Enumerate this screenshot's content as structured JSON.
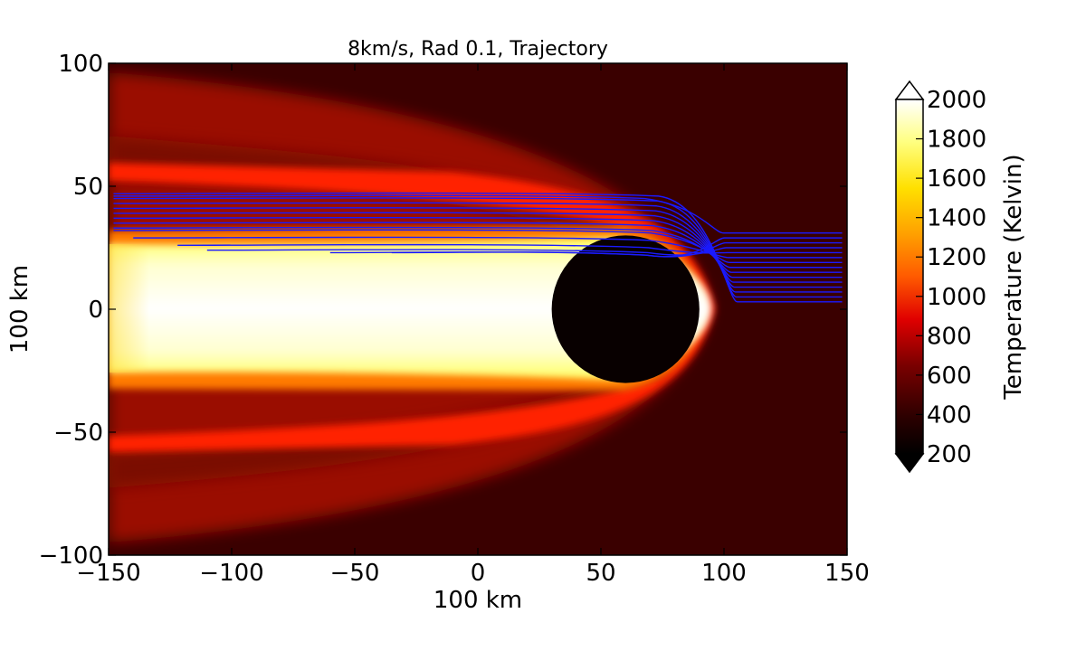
{
  "chart_data": {
    "type": "heatmap",
    "title": "8km/s, Rad 0.1, Trajectory",
    "xlabel": "100 km",
    "ylabel": "100 km",
    "xlim": [
      -150,
      150
    ],
    "ylim": [
      -100,
      100
    ],
    "x_ticks": [
      -150,
      -100,
      -50,
      0,
      50,
      100,
      150
    ],
    "y_ticks": [
      -100,
      -50,
      0,
      50,
      100
    ],
    "x_tick_labels": [
      "−150",
      "−100",
      "−50",
      "0",
      "50",
      "100",
      "150"
    ],
    "y_tick_labels": [
      "−100",
      "−50",
      "0",
      "50",
      "100"
    ],
    "colorbar": {
      "label": "Temperature (Kelvin)",
      "min": 200,
      "max": 2000,
      "ticks": [
        200,
        400,
        600,
        800,
        1000,
        1200,
        1400,
        1600,
        1800,
        2000
      ],
      "tick_labels": [
        "200",
        "400",
        "600",
        "800",
        "1000",
        "1200",
        "1400",
        "1600",
        "1800",
        "2000"
      ],
      "colormap": "hot",
      "extend": "both"
    },
    "obstacle": {
      "center": [
        60,
        0
      ],
      "radius": 30
    },
    "trajectory_color": "#1a1aff",
    "trajectories": [
      {
        "start": [
          148,
          3
        ],
        "end": [
          -148,
          47
        ]
      },
      {
        "start": [
          148,
          5
        ],
        "end": [
          -148,
          45
        ]
      },
      {
        "start": [
          148,
          7
        ],
        "end": [
          -148,
          43
        ]
      },
      {
        "start": [
          148,
          9
        ],
        "end": [
          -148,
          41
        ]
      },
      {
        "start": [
          148,
          11
        ],
        "end": [
          -148,
          39
        ]
      },
      {
        "start": [
          148,
          13
        ],
        "end": [
          -148,
          37
        ]
      },
      {
        "start": [
          148,
          15
        ],
        "end": [
          -148,
          35
        ]
      },
      {
        "start": [
          148,
          17
        ],
        "end": [
          -148,
          33
        ]
      },
      {
        "start": [
          148,
          19
        ],
        "end": [
          -148,
          32
        ]
      },
      {
        "start": [
          148,
          21
        ],
        "end": [
          -140,
          29
        ]
      },
      {
        "start": [
          148,
          23
        ],
        "end": [
          -122,
          26
        ]
      },
      {
        "start": [
          148,
          25
        ],
        "end": [
          -110,
          24
        ]
      },
      {
        "start": [
          148,
          27
        ],
        "end": [
          -60,
          23
        ]
      },
      {
        "start": [
          148,
          29
        ],
        "end": [
          -35,
          23
        ]
      },
      {
        "start": [
          148,
          31
        ],
        "end": [
          -148,
          46
        ]
      }
    ]
  }
}
